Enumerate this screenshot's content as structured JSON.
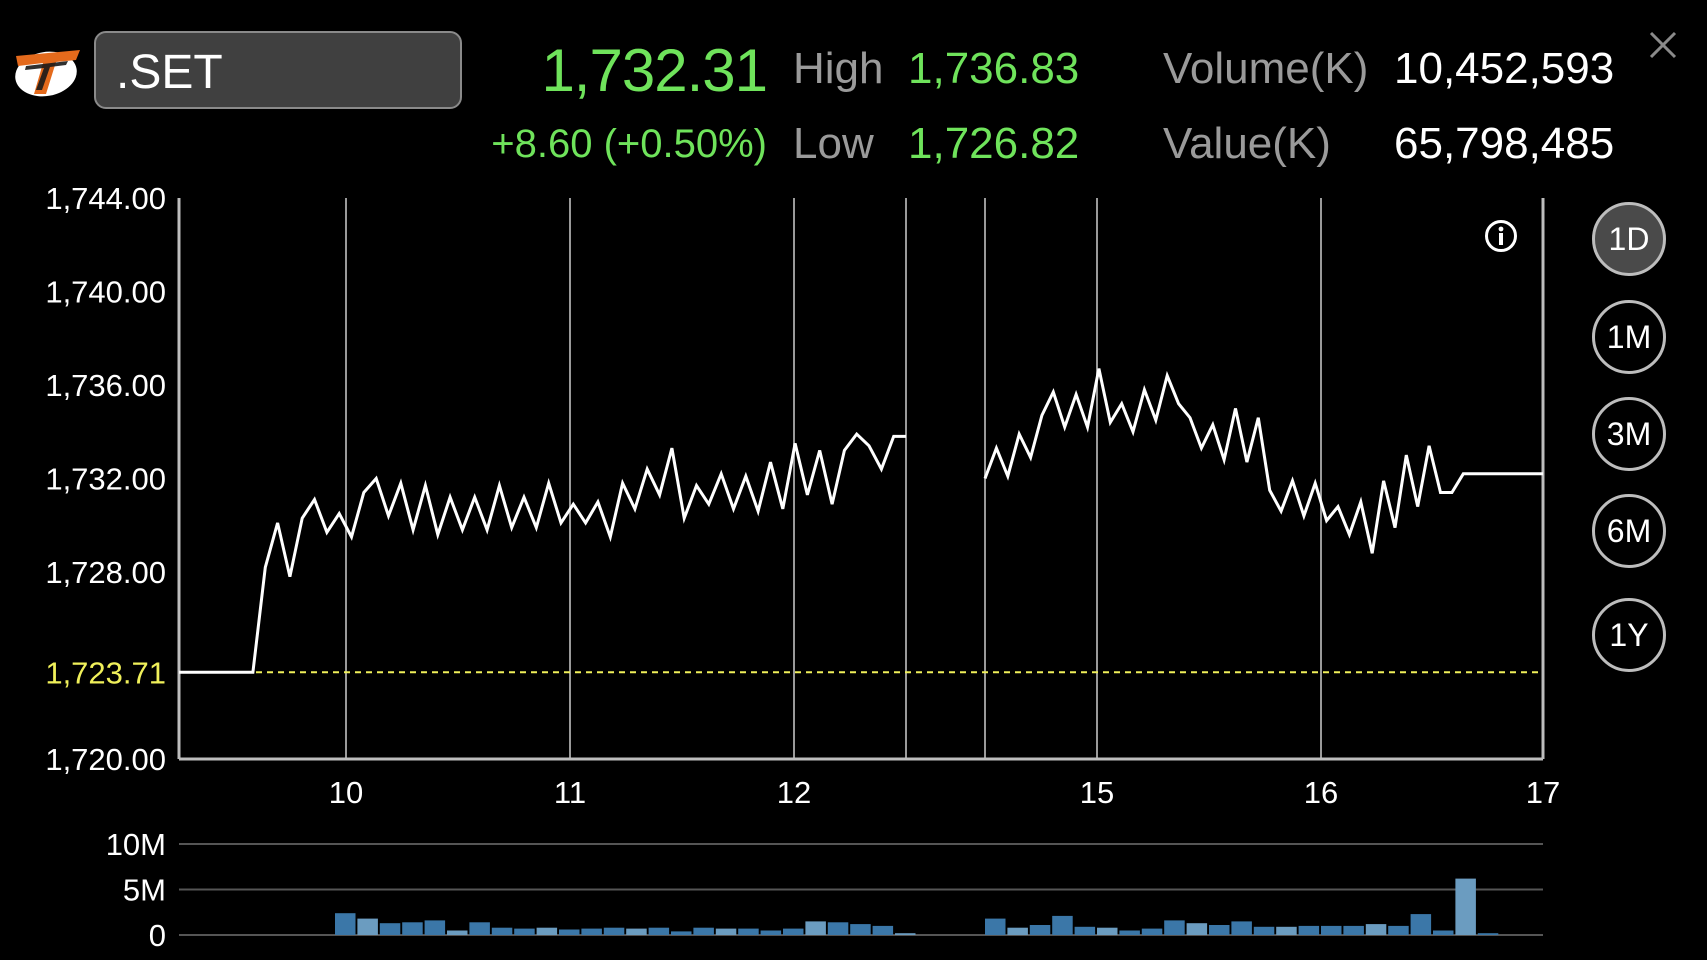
{
  "header": {
    "symbol": ".SET",
    "last_price": "1,732.31",
    "change": "+8.60 (+0.50%)",
    "high_label": "High",
    "high_value": "1,736.83",
    "low_label": "Low",
    "low_value": "1,726.82",
    "volume_label": "Volume(K)",
    "volume_value": "10,452,593",
    "value_label": "Value(K)",
    "value_value": "65,798,485"
  },
  "periods": [
    "1D",
    "1M",
    "3M",
    "6M",
    "1Y"
  ],
  "active_period": "1D",
  "icons": {
    "logo": "app-logo-icon",
    "close": "close-icon",
    "info": "info-icon"
  },
  "colors": {
    "up": "#6fe35b",
    "prev_close": "#f0f05a",
    "volume_bar": "#3b77a8",
    "volume_bar_light": "#6b9cc0"
  },
  "chart_data": [
    {
      "type": "line",
      "title": "",
      "y_ticks": [
        "1,744.00",
        "1,740.00",
        "1,736.00",
        "1,732.00",
        "1,728.00",
        "1,720.00"
      ],
      "prev_close_label": "1,723.71",
      "prev_close": 1723.71,
      "ylim": [
        1720,
        1744
      ],
      "x_ticks": [
        "10",
        "11",
        "12",
        "15",
        "16",
        "17"
      ],
      "grid": true,
      "series": [
        {
          "segment": "morning",
          "values": [
            1723.71,
            1723.71,
            1723.71,
            1723.71,
            1723.71,
            1723.71,
            1723.71,
            1728.2,
            1730.1,
            1727.8,
            1730.3,
            1731.1,
            1729.7,
            1730.5,
            1729.5,
            1731.4,
            1732.0,
            1730.4,
            1731.8,
            1729.8,
            1731.7,
            1729.6,
            1731.2,
            1729.8,
            1731.2,
            1729.8,
            1731.7,
            1729.9,
            1731.2,
            1729.9,
            1731.8,
            1730.1,
            1730.9,
            1730.1,
            1731.0,
            1729.5,
            1731.8,
            1730.7,
            1732.4,
            1731.3,
            1733.3,
            1730.3,
            1731.7,
            1730.9,
            1732.2,
            1730.7,
            1732.1,
            1730.6,
            1732.7,
            1730.7,
            1733.5,
            1731.3,
            1733.2,
            1730.9,
            1733.2,
            1733.9,
            1733.4,
            1732.4,
            1733.8,
            1733.8
          ]
        },
        {
          "segment": "afternoon",
          "values": [
            1732.0,
            1733.3,
            1732.1,
            1733.9,
            1732.9,
            1734.7,
            1735.7,
            1734.2,
            1735.6,
            1734.2,
            1736.7,
            1734.4,
            1735.2,
            1734.0,
            1735.8,
            1734.5,
            1736.4,
            1735.2,
            1734.6,
            1733.3,
            1734.3,
            1732.8,
            1735.0,
            1732.7,
            1734.6,
            1731.5,
            1730.6,
            1731.9,
            1730.4,
            1731.8,
            1730.2,
            1730.8,
            1729.6,
            1731.0,
            1728.8,
            1731.9,
            1729.9,
            1733.0,
            1730.8,
            1733.4,
            1731.4,
            1731.4,
            1732.2,
            1732.2,
            1732.2,
            1732.2,
            1732.2,
            1732.2,
            1732.2,
            1732.2
          ]
        }
      ]
    },
    {
      "type": "bar",
      "title": "",
      "y_ticks": [
        "10M",
        "5M",
        "0"
      ],
      "ylim": [
        0,
        10
      ],
      "unit": "M",
      "series": [
        {
          "segment": "morning",
          "values": [
            2.4,
            1.8,
            1.3,
            1.4,
            1.6,
            0.5,
            1.4,
            0.8,
            0.7,
            0.8,
            0.6,
            0.7,
            0.8,
            0.7,
            0.8,
            0.4,
            0.8,
            0.7,
            0.7,
            0.5,
            0.7,
            1.5,
            1.4,
            1.2,
            1.0,
            0.2
          ]
        },
        {
          "segment": "afternoon",
          "values": [
            1.8,
            0.8,
            1.1,
            2.1,
            0.9,
            0.8,
            0.5,
            0.7,
            1.6,
            1.3,
            1.1,
            1.5,
            0.9,
            0.9,
            1.0,
            1.0,
            1.0,
            1.2,
            1.0,
            2.3,
            0.5,
            6.2,
            0.2
          ]
        }
      ]
    }
  ]
}
